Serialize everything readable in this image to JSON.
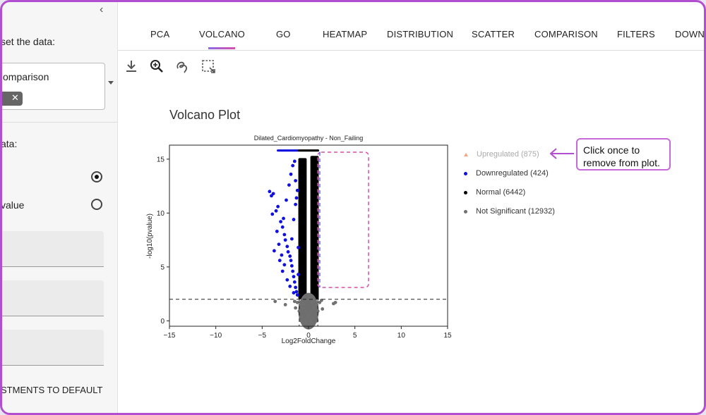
{
  "sidebar": {
    "subset_label": "set the data:",
    "comparison_label": "omparison",
    "chip_close": "✕",
    "data_label": "ata:",
    "radio_options": [
      {
        "label": "",
        "selected": true
      },
      {
        "label": "value",
        "selected": false
      }
    ],
    "reset_button": "STMENTS TO DEFAULT"
  },
  "tabs": [
    {
      "label": "PCA",
      "active": false
    },
    {
      "label": "VOLCANO",
      "active": true
    },
    {
      "label": "GO",
      "active": false
    },
    {
      "label": "HEATMAP",
      "active": false
    },
    {
      "label": "DISTRIBUTION",
      "active": false
    },
    {
      "label": "SCATTER",
      "active": false
    },
    {
      "label": "COMPARISON",
      "active": false
    },
    {
      "label": "FILTERS",
      "active": false
    },
    {
      "label": "DOWNL",
      "active": false
    }
  ],
  "toolbar": [
    "download-icon",
    "zoom-icon",
    "lasso-icon",
    "box-select-icon"
  ],
  "plot_title": "Volcano Plot",
  "chart_data": {
    "type": "scatter",
    "title": "Dilated_Cardiomyopathy - Non_Failing",
    "xlabel": "Log2FoldChange",
    "ylabel": "-log10(pvalue)",
    "xlim": [
      -15,
      15
    ],
    "ylim": [
      -0.5,
      16.3
    ],
    "x_ticks": [
      -15,
      -10,
      -5,
      0,
      5,
      10,
      15
    ],
    "y_ticks": [
      0,
      5,
      10,
      15
    ],
    "threshold_y": 2.0,
    "threshold_x": [
      -1,
      1
    ],
    "legend": [
      {
        "label": "Upregulated (875)",
        "color": "#f4a582",
        "hidden": true
      },
      {
        "label": "Downregulated (424)",
        "color": "#1010e0",
        "hidden": false
      },
      {
        "label": "Normal (6442)",
        "color": "#000000",
        "hidden": false
      },
      {
        "label": "Not Significant (12932)",
        "color": "#707070",
        "hidden": false
      }
    ],
    "series": [
      {
        "name": "Downregulated",
        "color": "#1010e0",
        "points": [
          [
            -4.2,
            12
          ],
          [
            -4,
            11.6
          ],
          [
            -3.8,
            11.8
          ],
          [
            -3.5,
            10.2
          ],
          [
            -3.3,
            10.6
          ],
          [
            -3,
            9.2
          ],
          [
            -2.8,
            8.7
          ],
          [
            -2.6,
            8
          ],
          [
            -2.5,
            7.5
          ],
          [
            -2.3,
            6.9
          ],
          [
            -2.2,
            6.4
          ],
          [
            -2,
            6
          ],
          [
            -1.9,
            5.6
          ],
          [
            -1.8,
            5.1
          ],
          [
            -1.7,
            4.6
          ],
          [
            -1.6,
            4.1
          ],
          [
            -1.5,
            3.6
          ],
          [
            -1.4,
            3.1
          ],
          [
            -1.3,
            2.7
          ],
          [
            -1.2,
            2.4
          ],
          [
            -3.7,
            6.5
          ],
          [
            -3.2,
            7.1
          ],
          [
            -2.7,
            9.5
          ],
          [
            -2.4,
            11.2
          ],
          [
            -2.1,
            12.6
          ],
          [
            -1.9,
            13.6
          ],
          [
            -1.7,
            14.4
          ],
          [
            -1.5,
            14.8
          ],
          [
            -1.4,
            13
          ],
          [
            -1.3,
            11.4
          ],
          [
            -2.9,
            6.1
          ],
          [
            -3.4,
            8.3
          ],
          [
            -3.9,
            9.9
          ],
          [
            -2.6,
            5.2
          ],
          [
            -1.8,
            7.6
          ],
          [
            -1.6,
            9.4
          ],
          [
            -1.4,
            10.8
          ],
          [
            -1.2,
            12.1
          ],
          [
            -1.1,
            6.8
          ],
          [
            -1.1,
            4.3
          ],
          [
            -2.3,
            3.8
          ],
          [
            -2.8,
            4.6
          ],
          [
            -3.1,
            5.6
          ],
          [
            -2,
            3.2
          ],
          [
            -1.6,
            2.6
          ]
        ]
      },
      {
        "name": "Not Significant",
        "color": "#707070",
        "points": [
          [
            -0.9,
            1.5
          ],
          [
            -0.6,
            1.2
          ],
          [
            -0.3,
            0.9
          ],
          [
            0,
            0.6
          ],
          [
            0.3,
            0.9
          ],
          [
            0.6,
            1.2
          ],
          [
            0.9,
            1.5
          ],
          [
            -0.7,
            0.4
          ],
          [
            -0.4,
            0.2
          ],
          [
            0.2,
            0.1
          ],
          [
            0.5,
            0.3
          ],
          [
            0.8,
            0.6
          ],
          [
            -1.2,
            1.7
          ],
          [
            1.2,
            1.7
          ],
          [
            -0.1,
            0.3
          ],
          [
            0.1,
            0.4
          ],
          [
            -0.5,
            1.6
          ],
          [
            0.4,
            1.7
          ],
          [
            -1.5,
            1.8
          ],
          [
            1.4,
            1.9
          ],
          [
            -2.5,
            1.5
          ],
          [
            2.7,
            1.6
          ],
          [
            -3.6,
            1.8
          ],
          [
            2.9,
            1.7
          ],
          [
            -0.2,
            1.9
          ],
          [
            0.7,
            1.9
          ],
          [
            -0.8,
            0
          ],
          [
            0.9,
            0
          ],
          [
            -1,
            0.9
          ],
          [
            1,
            0.9
          ],
          [
            -1.4,
            1.2
          ],
          [
            1.5,
            1.1
          ],
          [
            -0.3,
            -0.1
          ],
          [
            0.3,
            -0.1
          ]
        ]
      }
    ],
    "normal_bands": [
      {
        "x_min": -1.1,
        "x_max": -0.2,
        "y_max": 15.1
      },
      {
        "x_min": 0.2,
        "x_max": 1.1,
        "y_max": 15.3
      }
    ],
    "top_row_points": {
      "y": 15.8,
      "x_min": -3.3,
      "x_max": 1.1
    }
  },
  "callout": {
    "text": "Click once to remove from plot."
  }
}
